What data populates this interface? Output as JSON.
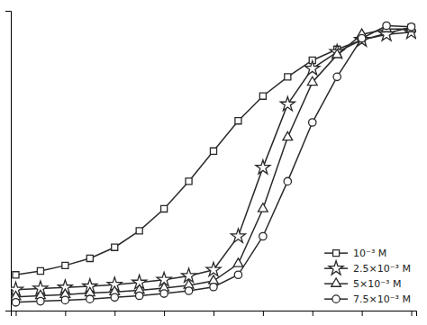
{
  "chart_data": {
    "type": "line",
    "x": [
      0,
      1,
      2,
      3,
      4,
      5,
      6,
      7,
      8,
      9,
      10,
      11,
      12,
      13,
      14,
      15,
      16
    ],
    "series": [
      {
        "name": "10⁻³ M",
        "color": "#2a2a2a",
        "marker": "square",
        "values": [
          3.05,
          3.12,
          3.22,
          3.35,
          3.55,
          3.85,
          4.25,
          4.75,
          5.3,
          5.85,
          6.3,
          6.65,
          6.95,
          7.15,
          7.32,
          7.44,
          7.55
        ]
      },
      {
        "name": "2.5×10⁻³ M",
        "color": "#2a2a2a",
        "marker": "star",
        "values": [
          2.78,
          2.8,
          2.82,
          2.84,
          2.87,
          2.91,
          2.96,
          3.03,
          3.14,
          3.75,
          5.0,
          6.15,
          6.8,
          7.1,
          7.32,
          7.42,
          7.46
        ]
      },
      {
        "name": "5×10⁻³ M",
        "color": "#2a2a2a",
        "marker": "triangle",
        "values": [
          2.65,
          2.67,
          2.69,
          2.72,
          2.74,
          2.77,
          2.81,
          2.86,
          2.94,
          3.25,
          4.25,
          5.55,
          6.55,
          7.05,
          7.42,
          7.52,
          7.52
        ]
      },
      {
        "name": "7.5×10⁻³ M",
        "color": "#2a2a2a",
        "marker": "circle",
        "values": [
          2.55,
          2.57,
          2.59,
          2.61,
          2.64,
          2.67,
          2.71,
          2.76,
          2.83,
          3.05,
          3.75,
          4.75,
          5.82,
          6.65,
          7.35,
          7.58,
          7.56
        ]
      }
    ],
    "xlim": [
      -0.2,
      16.2
    ],
    "ylim": [
      2.4,
      7.85
    ],
    "xticks": [
      0,
      2,
      4,
      6,
      8,
      10,
      12,
      14,
      16
    ],
    "yticks": [],
    "tick_labels": false,
    "grid": false,
    "legend": "lower right"
  }
}
